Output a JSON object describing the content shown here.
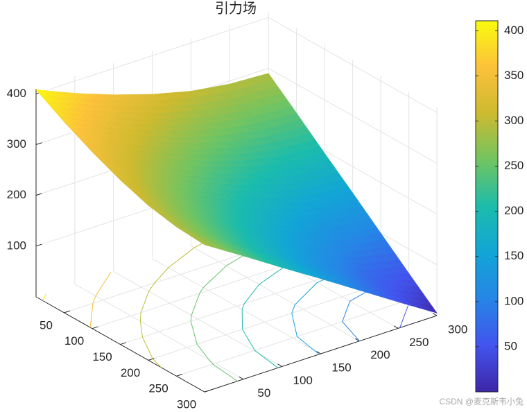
{
  "chart_data": {
    "type": "surface",
    "title": "引力场",
    "x": [
      0,
      50,
      100,
      150,
      200,
      250,
      300
    ],
    "y": [
      0,
      50,
      100,
      150,
      200,
      250,
      300
    ],
    "z": [
      [
        408,
        376,
        348,
        324,
        305,
        294,
        290
      ],
      [
        376,
        341,
        309,
        282,
        261,
        247,
        243
      ],
      [
        348,
        309,
        274,
        243,
        218,
        201,
        195
      ],
      [
        324,
        282,
        243,
        206,
        176,
        155,
        148
      ],
      [
        305,
        261,
        218,
        176,
        139,
        111,
        100
      ],
      [
        294,
        247,
        201,
        155,
        111,
        72,
        52
      ],
      [
        290,
        243,
        195,
        148,
        100,
        52,
        5
      ]
    ],
    "xlim": [
      0,
      300
    ],
    "ylim": [
      0,
      300
    ],
    "zlim": [
      0,
      410
    ],
    "xticks": [
      50,
      100,
      150,
      200,
      250,
      300
    ],
    "yticks": [
      50,
      100,
      150,
      200,
      250,
      300
    ],
    "zticks": [
      100,
      200,
      300,
      400
    ],
    "contour_levels": [
      50,
      100,
      150,
      200,
      250,
      300,
      350,
      400
    ],
    "clim": [
      0,
      411
    ],
    "cticks": [
      50,
      100,
      150,
      200,
      250,
      300,
      350,
      400
    ],
    "colormap": [
      "#3e26a8",
      "#4254ee",
      "#2685e6",
      "#12a5d6",
      "#1cbcab",
      "#71c461",
      "#cdba2f",
      "#fcc13b",
      "#f9fb0e"
    ],
    "grid": true,
    "colorbar": true
  },
  "watermark": "CSDN @麦克斯韦小兔"
}
